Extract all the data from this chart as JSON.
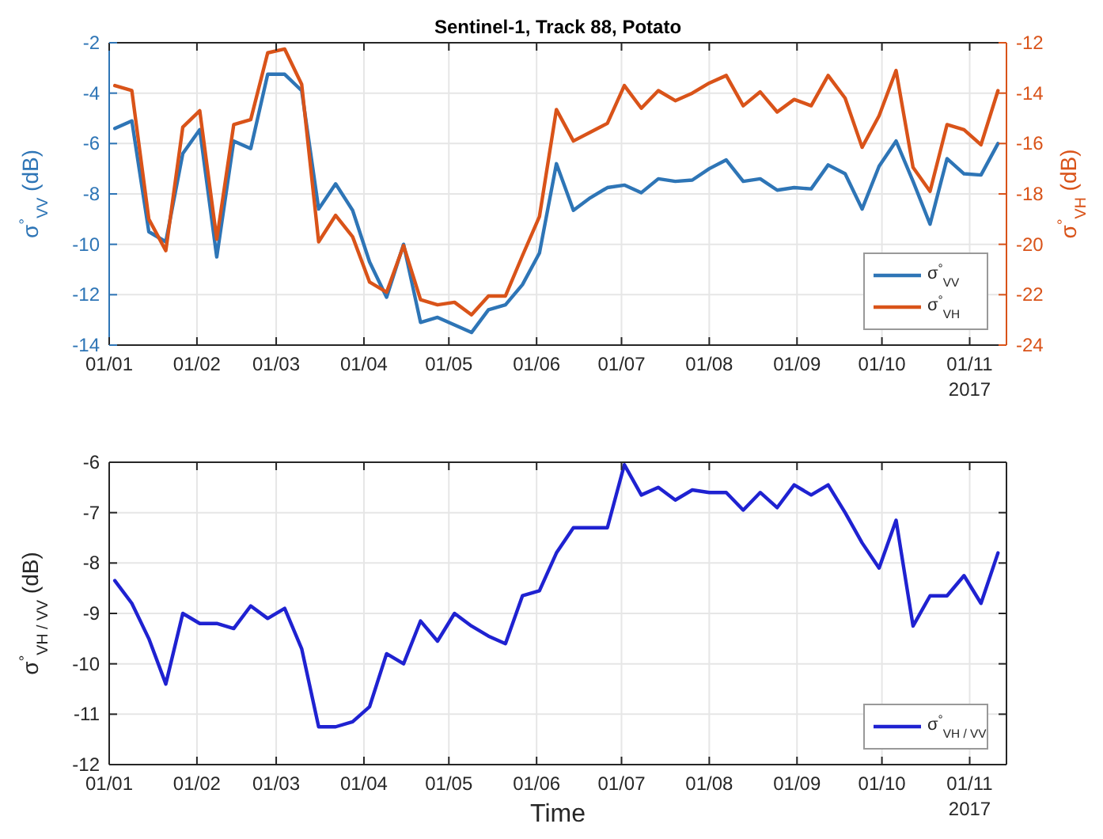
{
  "chart_data": [
    {
      "type": "line",
      "title": "Sentinel-1, Track 88, Potato",
      "ylabel": "σ$^{°}$$_{VV}$ (dB)",
      "y2label": "σ$^{°}$$_{VH}$ (dB)",
      "x": [
        "2017-01-03",
        "2017-01-09",
        "2017-01-15",
        "2017-01-21",
        "2017-01-27",
        "2017-02-02",
        "2017-02-08",
        "2017-02-14",
        "2017-02-20",
        "2017-02-26",
        "2017-03-04",
        "2017-03-10",
        "2017-03-16",
        "2017-03-22",
        "2017-03-28",
        "2017-04-03",
        "2017-04-09",
        "2017-04-15",
        "2017-04-21",
        "2017-04-27",
        "2017-05-03",
        "2017-05-09",
        "2017-05-15",
        "2017-05-21",
        "2017-05-27",
        "2017-06-02",
        "2017-06-08",
        "2017-06-14",
        "2017-06-20",
        "2017-06-26",
        "2017-07-02",
        "2017-07-08",
        "2017-07-14",
        "2017-07-20",
        "2017-07-26",
        "2017-08-01",
        "2017-08-07",
        "2017-08-13",
        "2017-08-19",
        "2017-08-25",
        "2017-08-31",
        "2017-09-06",
        "2017-09-12",
        "2017-09-18",
        "2017-09-24",
        "2017-09-30",
        "2017-10-06",
        "2017-10-12",
        "2017-10-18",
        "2017-10-24",
        "2017-10-30",
        "2017-11-05",
        "2017-11-11"
      ],
      "series": [
        {
          "name": "σ$^{°}$$_{VV}$",
          "color": "#2e75b6",
          "values": [
            -5.4,
            -5.1,
            -9.5,
            -9.9,
            -6.4,
            -5.45,
            -10.5,
            -5.9,
            -6.2,
            -3.25,
            -3.25,
            -3.9,
            -8.6,
            -7.6,
            -8.65,
            -10.7,
            -12.1,
            -10.0,
            -13.1,
            -12.9,
            -13.2,
            -13.5,
            -12.6,
            -12.4,
            -11.6,
            -10.35,
            -6.8,
            -8.65,
            -8.15,
            -7.75,
            -7.65,
            -7.95,
            -7.4,
            -7.5,
            -7.45,
            -7.0,
            -6.65,
            -7.5,
            -7.4,
            -7.85,
            -7.75,
            -7.8,
            -6.85,
            -7.2,
            -8.6,
            -6.9,
            -5.9,
            -7.5,
            -9.2,
            -6.6,
            -7.2,
            -7.25,
            -6.0
          ]
        },
        {
          "name": "σ$^{°}$$_{VH}$",
          "color": "#d95319",
          "axis": "y2",
          "values": [
            -13.7,
            -13.9,
            -19.0,
            -20.25,
            -15.35,
            -14.7,
            -19.8,
            -15.25,
            -15.05,
            -12.4,
            -12.25,
            -13.65,
            -19.9,
            -18.85,
            -19.7,
            -21.5,
            -21.9,
            -20.05,
            -22.2,
            -22.4,
            -22.3,
            -22.8,
            -22.05,
            -22.05,
            -20.45,
            -18.9,
            -14.65,
            -15.9,
            -15.55,
            -15.2,
            -13.7,
            -14.6,
            -13.9,
            -14.3,
            -14.0,
            -13.6,
            -13.3,
            -14.5,
            -13.95,
            -14.75,
            -14.25,
            -14.5,
            -13.3,
            -14.2,
            -16.15,
            -14.9,
            -13.1,
            -16.95,
            -17.9,
            -15.25,
            -15.45,
            -16.05,
            -13.9
          ]
        }
      ],
      "xlim": [
        "2017-01-01",
        "2017-11-14"
      ],
      "xticks": [
        {
          "value": "2017-01-01",
          "label": "01/01"
        },
        {
          "value": "2017-02-01",
          "label": "01/02"
        },
        {
          "value": "2017-03-01",
          "label": "01/03"
        },
        {
          "value": "2017-04-01",
          "label": "01/04"
        },
        {
          "value": "2017-05-01",
          "label": "01/05"
        },
        {
          "value": "2017-06-01",
          "label": "01/06"
        },
        {
          "value": "2017-07-01",
          "label": "01/07"
        },
        {
          "value": "2017-08-01",
          "label": "01/08"
        },
        {
          "value": "2017-09-01",
          "label": "01/09"
        },
        {
          "value": "2017-10-01",
          "label": "01/10"
        },
        {
          "value": "2017-11-01",
          "label": "01/11"
        }
      ],
      "ylim": [
        -14,
        -2
      ],
      "yticks": [
        -14,
        -12,
        -10,
        -8,
        -6,
        -4,
        -2
      ],
      "y2lim": [
        -24,
        -12
      ],
      "y2ticks": [
        -24,
        -22,
        -20,
        -18,
        -16,
        -14,
        -12
      ],
      "grid": true,
      "legend": "bottom right",
      "annotations": [
        "2017"
      ]
    },
    {
      "type": "line",
      "xlabel": "Time",
      "ylabel": "σ$^{°}$$_{VH / VV}$ (dB)",
      "x": [
        "2017-01-03",
        "2017-01-09",
        "2017-01-15",
        "2017-01-21",
        "2017-01-27",
        "2017-02-02",
        "2017-02-08",
        "2017-02-14",
        "2017-02-20",
        "2017-02-26",
        "2017-03-04",
        "2017-03-10",
        "2017-03-16",
        "2017-03-22",
        "2017-03-28",
        "2017-04-03",
        "2017-04-09",
        "2017-04-15",
        "2017-04-21",
        "2017-04-27",
        "2017-05-03",
        "2017-05-09",
        "2017-05-15",
        "2017-05-21",
        "2017-05-27",
        "2017-06-02",
        "2017-06-08",
        "2017-06-14",
        "2017-06-20",
        "2017-06-26",
        "2017-07-02",
        "2017-07-08",
        "2017-07-14",
        "2017-07-20",
        "2017-07-26",
        "2017-08-01",
        "2017-08-07",
        "2017-08-13",
        "2017-08-19",
        "2017-08-25",
        "2017-08-31",
        "2017-09-06",
        "2017-09-12",
        "2017-09-18",
        "2017-09-24",
        "2017-09-30",
        "2017-10-06",
        "2017-10-12",
        "2017-10-18",
        "2017-10-24",
        "2017-10-30",
        "2017-11-05",
        "2017-11-11"
      ],
      "series": [
        {
          "name": "σ$^{°}$$_{VH / VV}$",
          "color": "#1f22d1",
          "values": [
            -8.35,
            -8.8,
            -9.5,
            -10.4,
            -9.0,
            -9.2,
            -9.2,
            -9.3,
            -8.85,
            -9.1,
            -8.9,
            -9.7,
            -11.25,
            -11.25,
            -11.15,
            -10.85,
            -9.8,
            -10.0,
            -9.15,
            -9.55,
            -9.0,
            -9.25,
            -9.45,
            -9.6,
            -8.65,
            -8.55,
            -7.8,
            -7.3,
            -7.3,
            -7.3,
            -6.05,
            -6.65,
            -6.5,
            -6.75,
            -6.55,
            -6.6,
            -6.6,
            -6.95,
            -6.6,
            -6.9,
            -6.45,
            -6.65,
            -6.45,
            -7.0,
            -7.6,
            -8.1,
            -7.15,
            -9.25,
            -8.65,
            -8.65,
            -8.25,
            -8.8,
            -7.8
          ]
        }
      ],
      "xlim": [
        "2017-01-01",
        "2017-11-14"
      ],
      "xticks": [
        {
          "value": "2017-01-01",
          "label": "01/01"
        },
        {
          "value": "2017-02-01",
          "label": "01/02"
        },
        {
          "value": "2017-03-01",
          "label": "01/03"
        },
        {
          "value": "2017-04-01",
          "label": "01/04"
        },
        {
          "value": "2017-05-01",
          "label": "01/05"
        },
        {
          "value": "2017-06-01",
          "label": "01/06"
        },
        {
          "value": "2017-07-01",
          "label": "01/07"
        },
        {
          "value": "2017-08-01",
          "label": "01/08"
        },
        {
          "value": "2017-09-01",
          "label": "01/09"
        },
        {
          "value": "2017-10-01",
          "label": "01/10"
        },
        {
          "value": "2017-11-01",
          "label": "01/11"
        }
      ],
      "ylim": [
        -12,
        -6
      ],
      "yticks": [
        -12,
        -11,
        -10,
        -9,
        -8,
        -7,
        -6
      ],
      "grid": true,
      "legend": "bottom right",
      "annotations": [
        "2017"
      ]
    }
  ]
}
